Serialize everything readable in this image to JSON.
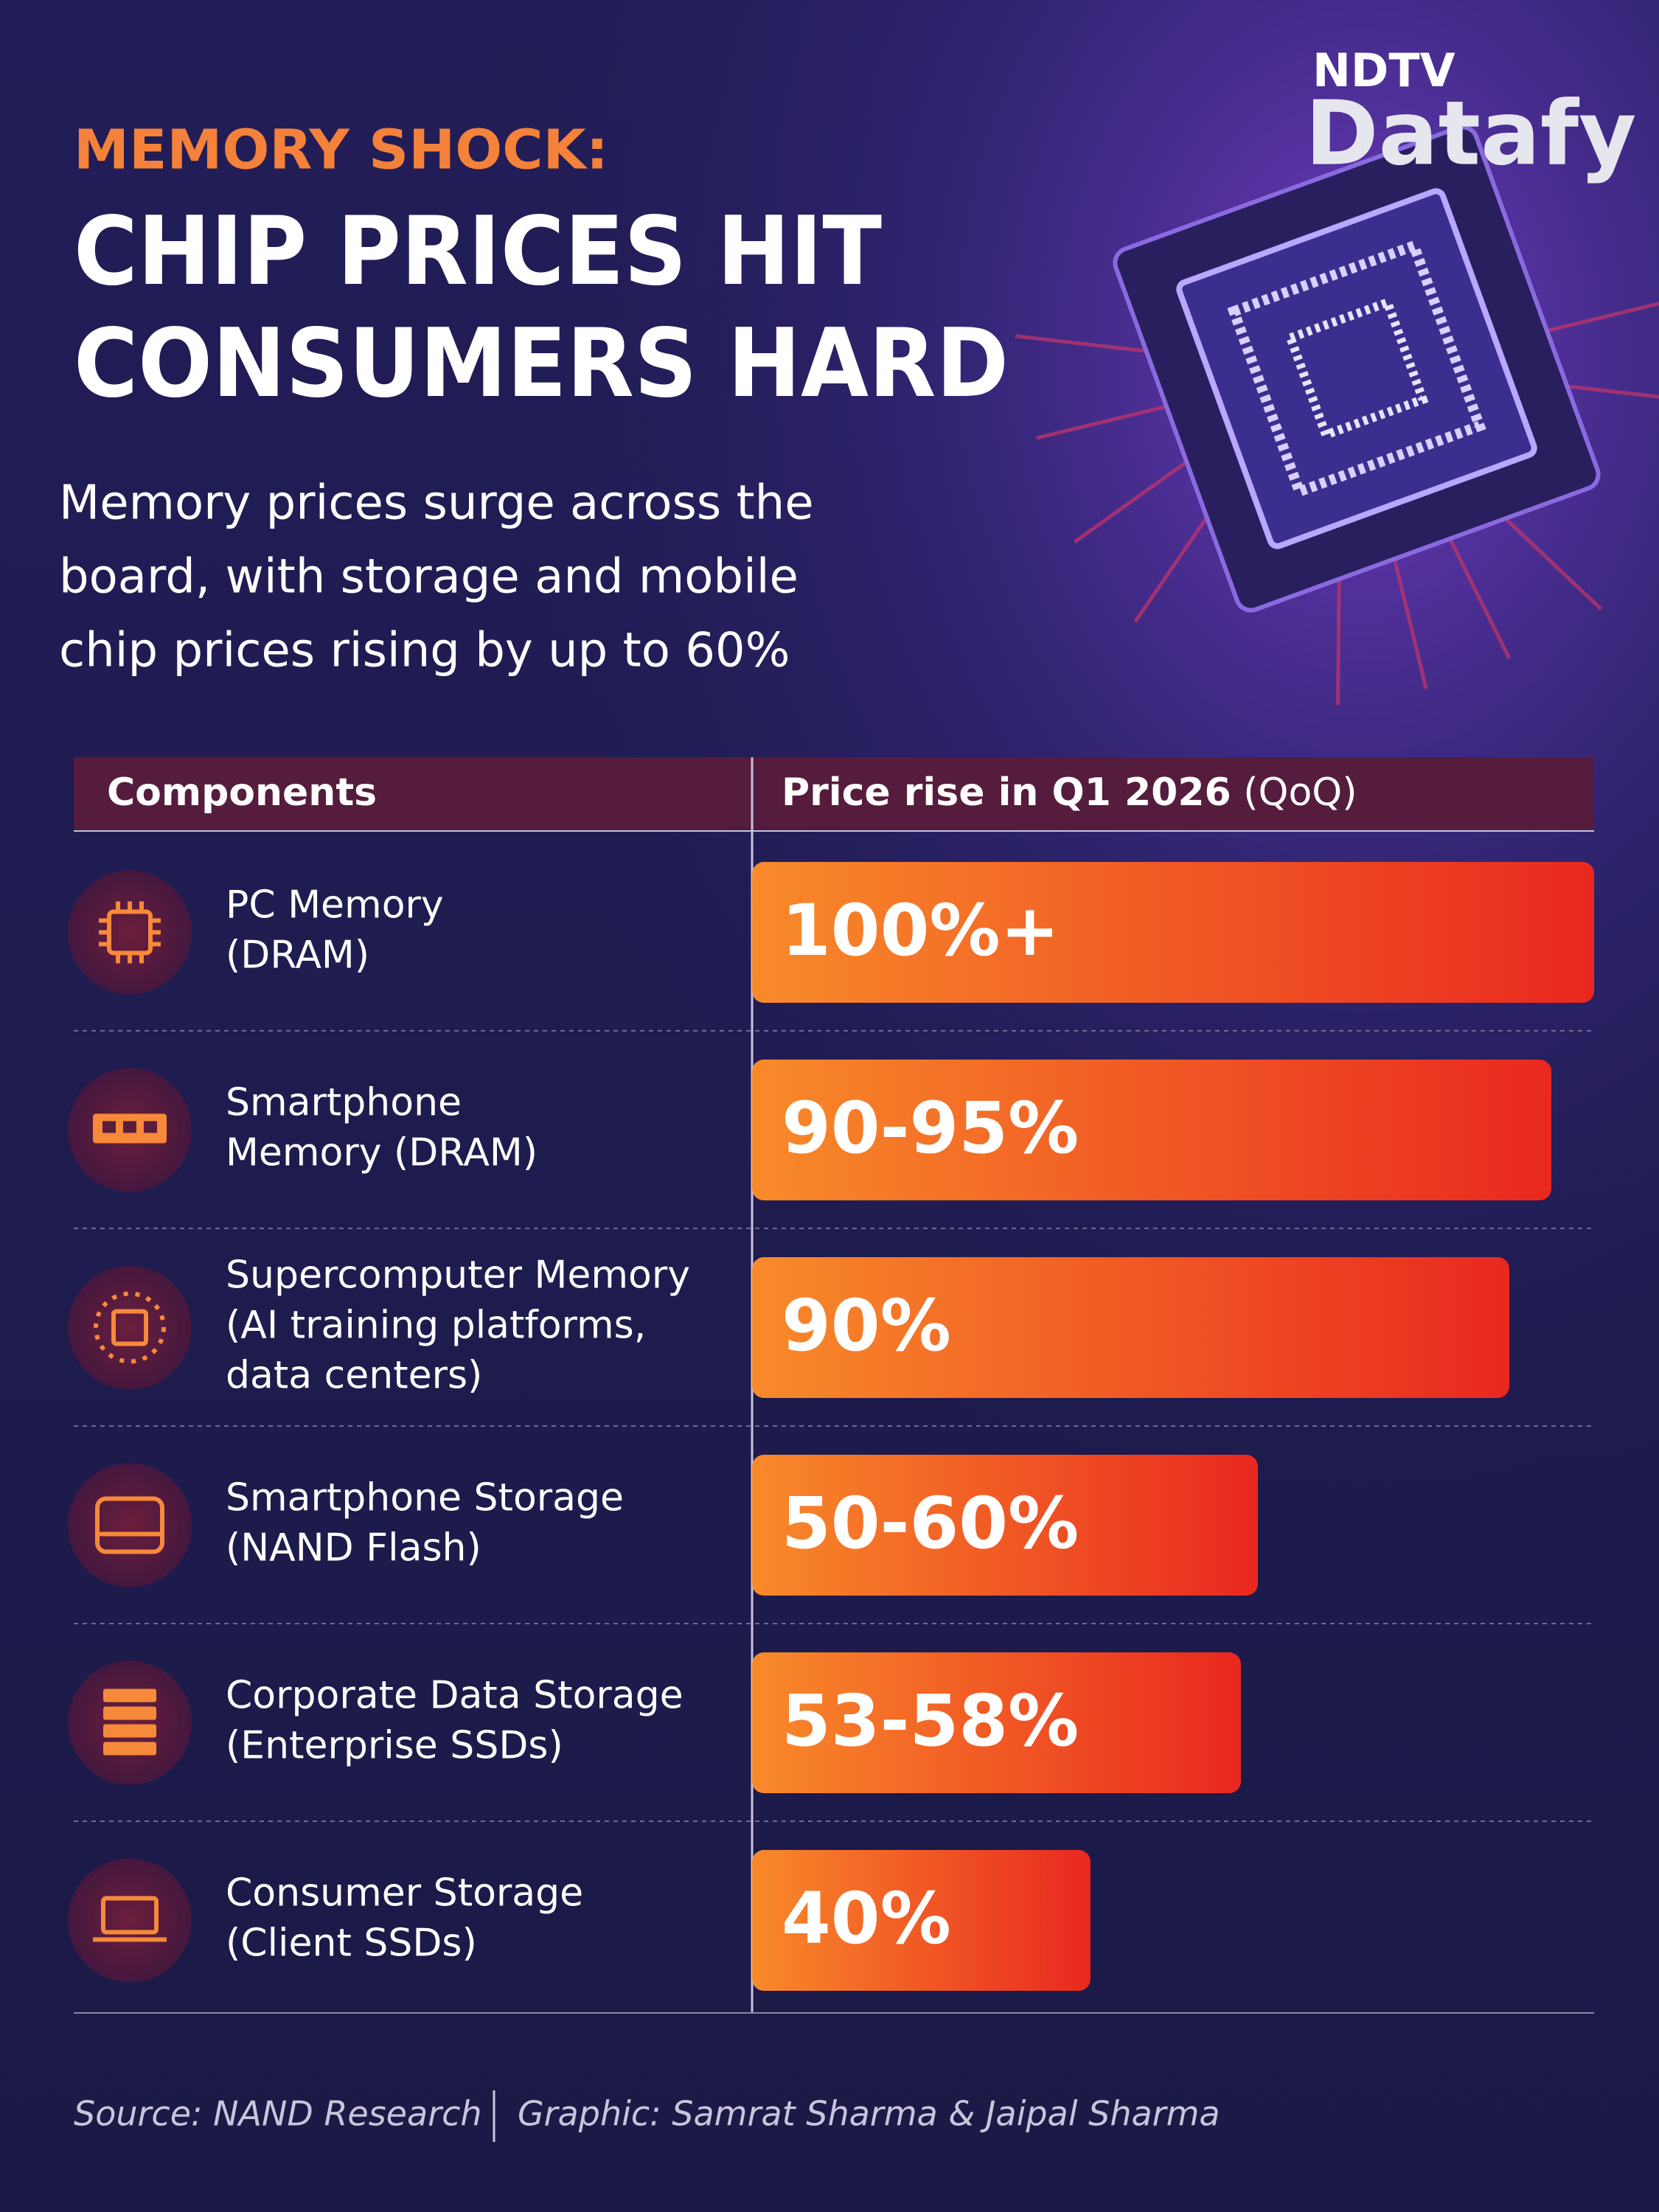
{
  "logo": {
    "brand": "NDTV",
    "product": "Datafy"
  },
  "header": {
    "kicker": "MEMORY SHOCK:",
    "title_lines": [
      "CHIP PRICES HIT",
      "CONSUMERS HARD"
    ],
    "subtitle_lines": [
      "Memory prices surge across the",
      "board, with storage and mobile",
      "chip prices rising by up to 60%"
    ]
  },
  "table": {
    "columns": [
      "Components",
      "Price rise in Q1 2026",
      "(QoQ)"
    ],
    "rows": [
      {
        "label": [
          "PC Memory",
          "(DRAM)"
        ],
        "value": "100%+"
      },
      {
        "label": [
          "Smartphone",
          "Memory (DRAM)"
        ],
        "value": "90-95%"
      },
      {
        "label": [
          "Supercomputer Memory",
          "(AI training platforms,",
          "data centers)"
        ],
        "value": "90%"
      },
      {
        "label": [
          "Smartphone Storage",
          "(NAND Flash)"
        ],
        "value": "50-60%"
      },
      {
        "label": [
          "Corporate Data Storage",
          "(Enterprise SSDs)"
        ],
        "value": "53-58%"
      },
      {
        "label": [
          "Consumer Storage",
          "(Client SSDs)"
        ],
        "value": "40%"
      }
    ]
  },
  "footer": {
    "source": "Source: NAND Research",
    "credit": "Graphic: Samrat Sharma & Jaipal Sharma"
  }
}
